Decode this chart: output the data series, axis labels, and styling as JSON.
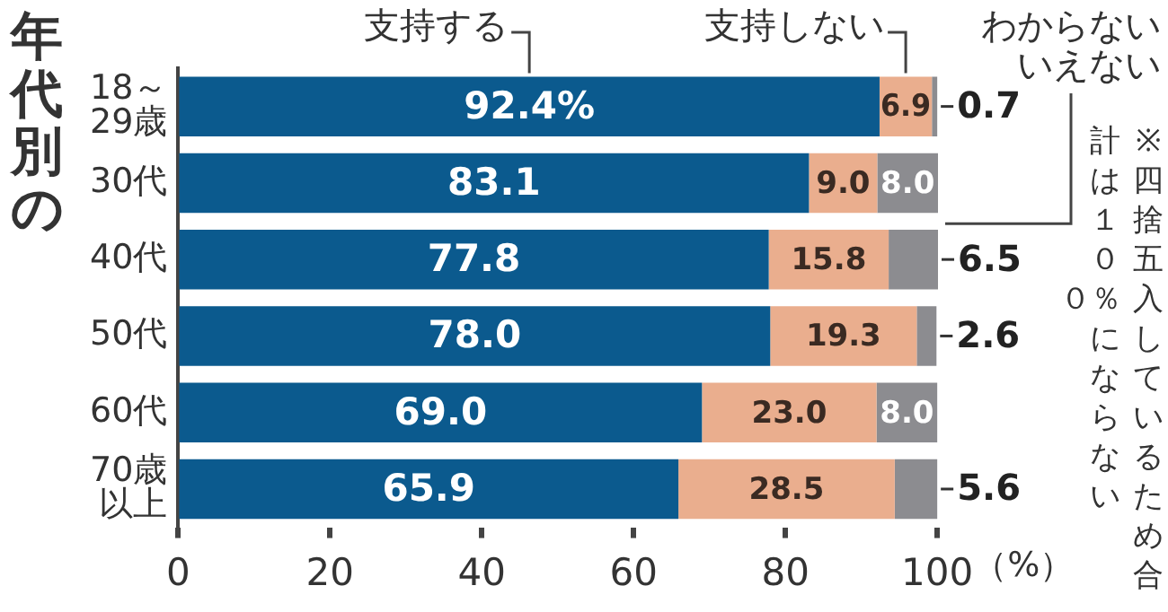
{
  "chart_data": {
    "type": "bar",
    "orientation": "horizontal",
    "stacked": true,
    "title": "年代別の",
    "xlabel": "（%）",
    "categories": [
      "18～29歳",
      "30代",
      "40代",
      "50代",
      "60代",
      "70歳以上"
    ],
    "series": [
      {
        "name": "支持する",
        "color": "#0b5a8e",
        "values": [
          92.4,
          83.1,
          77.8,
          78.0,
          69.0,
          65.9
        ],
        "value_labels": [
          "92.4%",
          "83.1",
          "77.8",
          "78.0",
          "69.0",
          "65.9"
        ]
      },
      {
        "name": "支持しない",
        "color": "#eaae8e",
        "values": [
          6.9,
          9.0,
          15.8,
          19.3,
          23.0,
          28.5
        ],
        "value_labels": [
          "6.9",
          "9.0",
          "15.8",
          "19.3",
          "23.0",
          "28.5"
        ]
      },
      {
        "name": "わからないいえない",
        "color": "#8c8c90",
        "values": [
          0.7,
          8.0,
          6.5,
          2.6,
          8.0,
          5.6
        ],
        "value_labels": [
          "0.7",
          "8.0",
          "6.5",
          "2.6",
          "8.0",
          "5.6"
        ]
      }
    ],
    "xlim": [
      0,
      100.1
    ],
    "xticks": [
      0,
      20,
      40,
      60,
      80,
      100
    ],
    "grid": false,
    "legend": false,
    "annotations": [
      "※四捨五入しているため合計は１００％にならない"
    ]
  }
}
